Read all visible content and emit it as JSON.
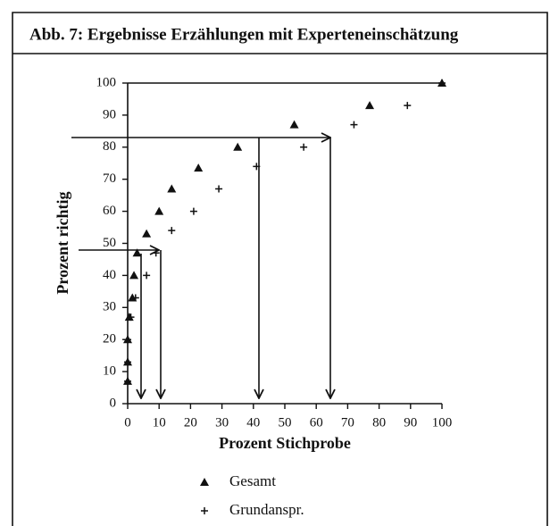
{
  "chart_data": {
    "type": "scatter",
    "title": "Abb. 7: Ergebnisse Erzählungen mit Experteneinschätzung",
    "xlabel": "Prozent Stichprobe",
    "ylabel": "Prozent  richtig",
    "xlim": [
      0,
      100
    ],
    "ylim": [
      0,
      100
    ],
    "xticks": [
      0,
      10,
      20,
      30,
      40,
      50,
      60,
      70,
      80,
      90,
      100
    ],
    "yticks": [
      0,
      10,
      20,
      30,
      40,
      50,
      60,
      70,
      80,
      90,
      100
    ],
    "series": [
      {
        "name": "Gesamt",
        "marker": "triangle",
        "color": "#111",
        "x": [
          0,
          0,
          0,
          0.5,
          1.5,
          2,
          3,
          6,
          10,
          14,
          22.5,
          35,
          53,
          77,
          100
        ],
        "values": [
          7,
          13,
          20,
          27,
          33,
          40,
          47,
          53,
          60,
          67,
          73.5,
          80,
          87,
          93,
          100
        ]
      },
      {
        "name": "Grundanspr.",
        "marker": "plus",
        "color": "#111",
        "x": [
          0,
          0,
          0,
          1,
          2.5,
          6,
          9,
          14,
          21,
          29,
          41,
          56,
          72,
          89,
          100
        ],
        "values": [
          7,
          13,
          20,
          27,
          33,
          40,
          47,
          54,
          60,
          67,
          74,
          80,
          87,
          93,
          100
        ]
      }
    ]
  }
}
